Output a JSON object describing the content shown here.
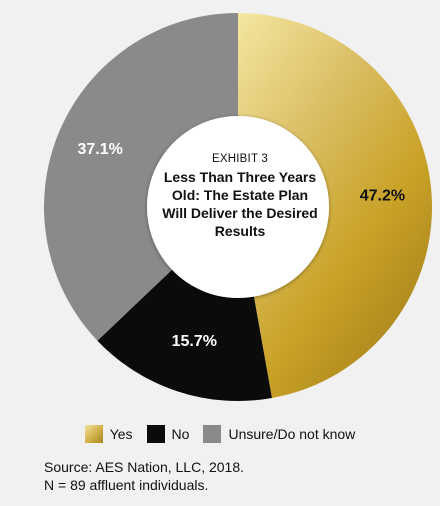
{
  "chart_data": {
    "type": "pie",
    "style": "donut",
    "exhibit": "EXHIBIT 3",
    "title": "Less Than Three Years Old: The Estate Plan Will Deliver the Desired Results",
    "categories": [
      "Yes",
      "No",
      "Unsure/Do not know"
    ],
    "values": [
      47.2,
      15.7,
      37.1
    ],
    "value_labels": [
      "47.2%",
      "15.7%",
      "37.1%"
    ],
    "colors": [
      "#c9a227",
      "#0b0b0b",
      "#8a8a8c"
    ],
    "legend_position": "bottom",
    "source": "Source: AES Nation, LLC, 2018.",
    "note": "N = 89 affluent individuals."
  }
}
